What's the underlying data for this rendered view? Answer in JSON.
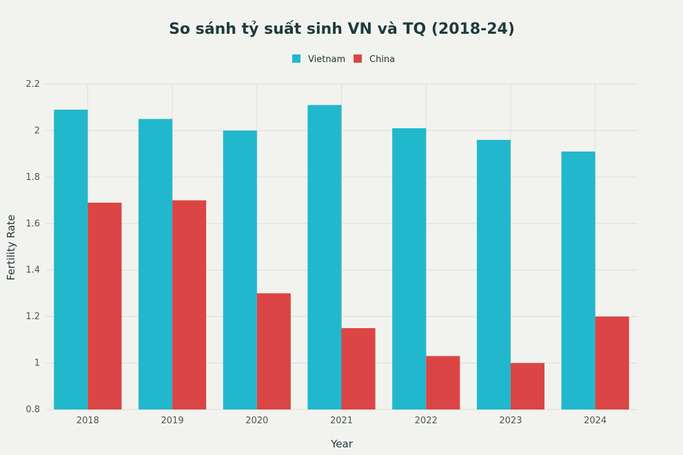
{
  "chart_data": {
    "type": "bar",
    "title": "So sánh tỷ suất sinh VN và TQ (2018-24)",
    "xlabel": "Year",
    "ylabel": "Fertility Rate",
    "categories": [
      "2018",
      "2019",
      "2020",
      "2021",
      "2022",
      "2023",
      "2024"
    ],
    "series": [
      {
        "name": "Vietnam",
        "color": "#21b8cd",
        "values": [
          2.09,
          2.05,
          2.0,
          2.11,
          2.01,
          1.96,
          1.91
        ]
      },
      {
        "name": "China",
        "color": "#db4545",
        "values": [
          1.69,
          1.7,
          1.3,
          1.15,
          1.03,
          1.0,
          1.2
        ]
      }
    ],
    "ylim": [
      0.8,
      2.2
    ],
    "yticks": [
      "0.8",
      "1",
      "1.2",
      "1.4",
      "1.6",
      "1.8",
      "2",
      "2.2"
    ],
    "legend_position": "top-center",
    "grid": true
  }
}
